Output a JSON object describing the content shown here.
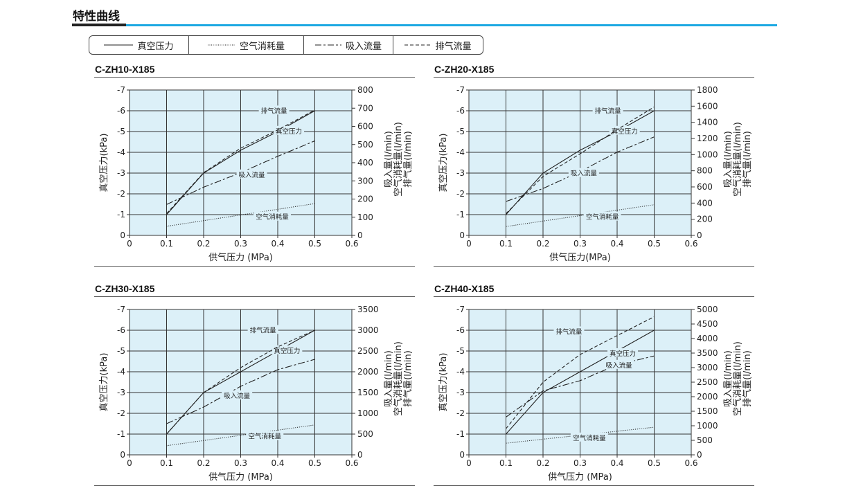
{
  "section_title": "特性曲线",
  "legend": [
    {
      "label": "真空压力",
      "style": "solid"
    },
    {
      "label": "空气消耗量",
      "style": "dotted"
    },
    {
      "label": "吸入流量",
      "style": "dashdot"
    },
    {
      "label": "排气流量",
      "style": "dashed"
    }
  ],
  "colors": {
    "plot_bg": "#dcf0f8",
    "accent": "#1ba8e2",
    "line": "#222222"
  },
  "chart_data": [
    {
      "type": "line",
      "title": "C-ZH10-X185",
      "xlabel": "供气压力 (MPa)",
      "ylabel_left": "真空压力(kPa)",
      "ylabel_right": [
        "吸入量(l/min)",
        "空气消耗量(l/min)",
        "排气量(l/min)"
      ],
      "xlim": [
        0,
        0.6
      ],
      "xticks": [
        "0",
        "0.1",
        "0.2",
        "0.3",
        "0.4",
        "0.5",
        "0.6"
      ],
      "ylim_left": [
        0,
        -7
      ],
      "yticks_left": [
        "0",
        "-1",
        "-2",
        "-3",
        "-4",
        "-5",
        "-6",
        "-7"
      ],
      "ylim_right": [
        0,
        800
      ],
      "yticks_right": [
        "0",
        "100",
        "200",
        "300",
        "400",
        "500",
        "600",
        "700",
        "800"
      ],
      "grid": true,
      "series": [
        {
          "name": "真空压力",
          "axis": "left",
          "style": "solid",
          "x": [
            0.1,
            0.2,
            0.3,
            0.4,
            0.5
          ],
          "y": [
            -1.0,
            -3.0,
            -4.1,
            -5.0,
            -6.0
          ]
        },
        {
          "name": "排气流量",
          "axis": "right",
          "style": "dashed",
          "x": [
            0.1,
            0.2,
            0.3,
            0.4,
            0.5
          ],
          "y": [
            120,
            345,
            480,
            580,
            690
          ]
        },
        {
          "name": "吸入流量",
          "axis": "right",
          "style": "dashdot",
          "x": [
            0.1,
            0.2,
            0.3,
            0.4,
            0.5
          ],
          "y": [
            170,
            265,
            345,
            435,
            520
          ]
        },
        {
          "name": "空气消耗量",
          "axis": "right",
          "style": "dotted",
          "x": [
            0.1,
            0.5
          ],
          "y": [
            50,
            175
          ]
        }
      ]
    },
    {
      "type": "line",
      "title": "C-ZH20-X185",
      "xlabel": "供气压力(MPa)",
      "ylabel_left": "真空压力(kPa)",
      "ylabel_right": [
        "吸入量(l/min)",
        "空气消耗量(l/min)",
        "排气量(l/min)"
      ],
      "xlim": [
        0,
        0.6
      ],
      "xticks": [
        "0",
        "0.1",
        "0.2",
        "0.3",
        "0.4",
        "0.5",
        "0.6"
      ],
      "ylim_left": [
        0,
        -7
      ],
      "yticks_left": [
        "0",
        "-1",
        "-2",
        "-3",
        "-4",
        "-5",
        "-6",
        "-7"
      ],
      "ylim_right": [
        0,
        1800
      ],
      "yticks_right": [
        "0",
        "200",
        "400",
        "600",
        "800",
        "1000",
        "1200",
        "1400",
        "1600",
        "1800"
      ],
      "grid": true,
      "series": [
        {
          "name": "真空压力",
          "axis": "left",
          "style": "solid",
          "x": [
            0.1,
            0.2,
            0.3,
            0.4,
            0.5
          ],
          "y": [
            -1.0,
            -3.0,
            -4.1,
            -5.0,
            -6.0
          ]
        },
        {
          "name": "排气流量",
          "axis": "right",
          "style": "dashed",
          "x": [
            0.1,
            0.2,
            0.3,
            0.4,
            0.5
          ],
          "y": [
            270,
            730,
            1010,
            1310,
            1590
          ]
        },
        {
          "name": "吸入流量",
          "axis": "right",
          "style": "dashdot",
          "x": [
            0.1,
            0.2,
            0.3,
            0.4,
            0.5
          ],
          "y": [
            420,
            580,
            790,
            1030,
            1220
          ]
        },
        {
          "name": "空气消耗量",
          "axis": "right",
          "style": "dotted",
          "x": [
            0.1,
            0.5
          ],
          "y": [
            110,
            380
          ]
        }
      ]
    },
    {
      "type": "line",
      "title": "C-ZH30-X185",
      "xlabel": "供气压力 (MPa)",
      "ylabel_left": "真空压力(kPa)",
      "ylabel_right": [
        "吸入量(l/min)",
        "空气消耗量(l/min)",
        "排气量(l/min)"
      ],
      "xlim": [
        0,
        0.6
      ],
      "xticks": [
        "0",
        "0.1",
        "0.2",
        "0.3",
        "0.4",
        "0.5",
        "0.6"
      ],
      "ylim_left": [
        0,
        -7
      ],
      "yticks_left": [
        "0",
        "-1",
        "-2",
        "-3",
        "-4",
        "-5",
        "-6",
        "-7"
      ],
      "ylim_right": [
        0,
        3500
      ],
      "yticks_right": [
        "0",
        "500",
        "1000",
        "1500",
        "2000",
        "2500",
        "3000",
        "3500"
      ],
      "grid": true,
      "series": [
        {
          "name": "真空压力",
          "axis": "left",
          "style": "solid",
          "x": [
            0.1,
            0.2,
            0.3,
            0.4,
            0.5
          ],
          "y": [
            -1.0,
            -3.0,
            -4.0,
            -5.0,
            -6.0
          ]
        },
        {
          "name": "排气流量",
          "axis": "right",
          "style": "dashed",
          "x": [
            0.1,
            0.2,
            0.3,
            0.4,
            0.5
          ],
          "y": [
            500,
            1500,
            2100,
            2600,
            3000
          ]
        },
        {
          "name": "吸入流量",
          "axis": "right",
          "style": "dashdot",
          "x": [
            0.1,
            0.2,
            0.3,
            0.4,
            0.5
          ],
          "y": [
            750,
            1150,
            1650,
            2050,
            2300
          ]
        },
        {
          "name": "空气消耗量",
          "axis": "right",
          "style": "dotted",
          "x": [
            0.1,
            0.5
          ],
          "y": [
            220,
            720
          ]
        }
      ]
    },
    {
      "type": "line",
      "title": "C-ZH40-X185",
      "xlabel": "供气压力 (MPa)",
      "ylabel_left": "真空压力(kPa)",
      "ylabel_right": [
        "吸入量(l/min)",
        "空气消耗量(l/min)",
        "排气量(l/min)"
      ],
      "xlim": [
        0,
        0.6
      ],
      "xticks": [
        "0",
        "0.1",
        "0.2",
        "0.3",
        "0.4",
        "0.5",
        "0.6"
      ],
      "ylim_left": [
        0,
        -7
      ],
      "yticks_left": [
        "0",
        "-1",
        "-2",
        "-3",
        "-4",
        "-5",
        "-6",
        "-7"
      ],
      "ylim_right": [
        0,
        5000
      ],
      "yticks_right": [
        "0",
        "500",
        "1000",
        "1500",
        "2000",
        "2500",
        "3000",
        "3500",
        "4000",
        "4500",
        "5000"
      ],
      "grid": true,
      "series": [
        {
          "name": "真空压力",
          "axis": "left",
          "style": "solid",
          "x": [
            0.1,
            0.2,
            0.3,
            0.4,
            0.5
          ],
          "y": [
            -1.0,
            -3.0,
            -4.0,
            -5.0,
            -6.0
          ]
        },
        {
          "name": "排气流量",
          "axis": "right",
          "style": "dashed",
          "x": [
            0.1,
            0.2,
            0.3,
            0.4,
            0.5
          ],
          "y": [
            900,
            2500,
            3450,
            4100,
            4750
          ]
        },
        {
          "name": "吸入流量",
          "axis": "right",
          "style": "dashdot",
          "x": [
            0.1,
            0.2,
            0.3,
            0.4,
            0.5
          ],
          "y": [
            1300,
            2200,
            2550,
            3100,
            3400
          ]
        },
        {
          "name": "空气消耗量",
          "axis": "right",
          "style": "dotted",
          "x": [
            0.1,
            0.5
          ],
          "y": [
            400,
            950
          ]
        }
      ]
    }
  ]
}
